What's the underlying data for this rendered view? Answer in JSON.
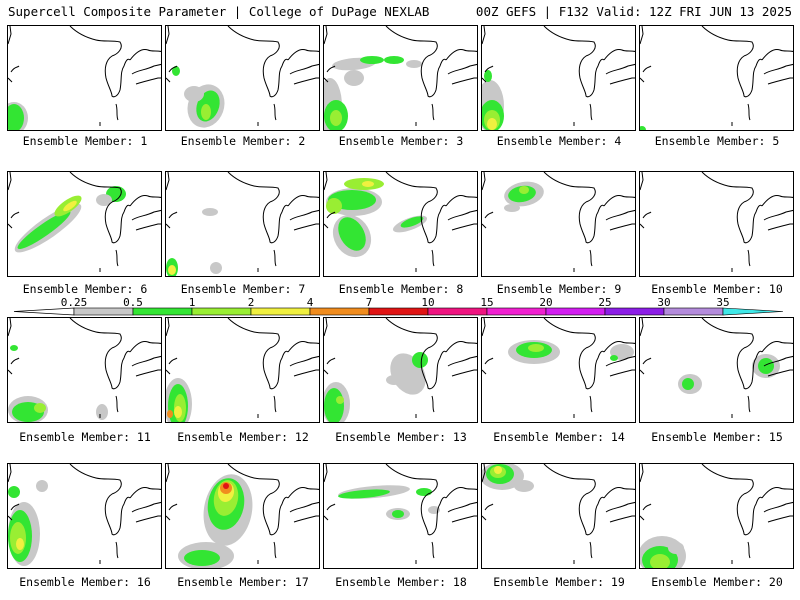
{
  "header": {
    "left": "Supercell Composite Parameter | College of DuPage NEXLAB",
    "right": "00Z GEFS | F132 Valid: 12Z FRI JUN 13 2025"
  },
  "caption_prefix": "Ensemble Member: ",
  "members": [
    1,
    2,
    3,
    4,
    5,
    6,
    7,
    8,
    9,
    10,
    11,
    12,
    13,
    14,
    15,
    16,
    17,
    18,
    19,
    20
  ],
  "colorbar": {
    "levels": [
      "0.25",
      "0.5",
      "1",
      "2",
      "4",
      "7",
      "10",
      "15",
      "20",
      "25",
      "30",
      "35"
    ],
    "colors": [
      "#c8c8c8",
      "#33e533",
      "#99ee33",
      "#f0f040",
      "#f08c1e",
      "#e01414",
      "#ee1480",
      "#f020d0",
      "#d21ef0",
      "#8c1ee6",
      "#b48cdc",
      "#40e8e8"
    ]
  },
  "colors": {
    "light": "#c8c8c8",
    "green": "#33e533",
    "lime": "#99ee33",
    "yellow": "#f0f040",
    "orange": "#f08c1e",
    "red": "#e01414"
  }
}
